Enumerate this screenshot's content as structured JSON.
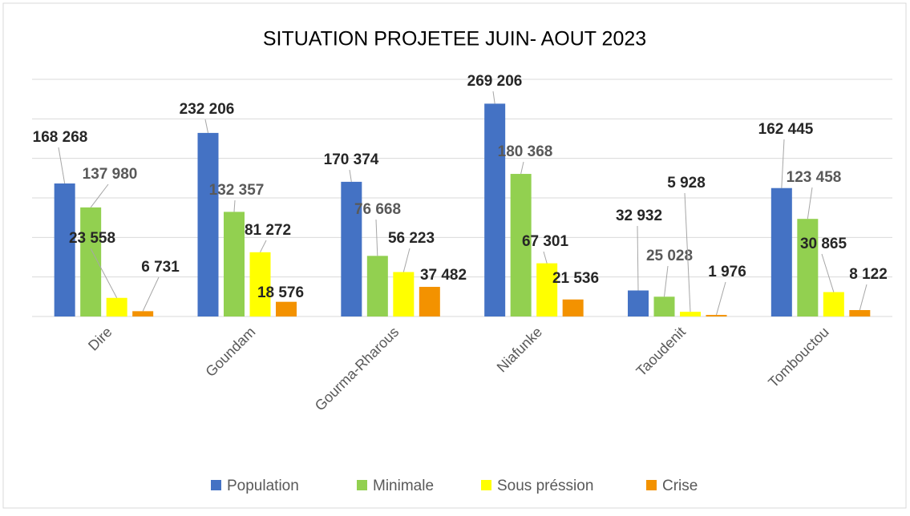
{
  "chart_data": {
    "type": "bar",
    "title": "SITUATION PROJETEE JUIN- AOUT 2023",
    "categories": [
      "Dire",
      "Goundam",
      "Gourma-Rharous",
      "Niafunke",
      "Taoudenit",
      "Tombouctou"
    ],
    "series": [
      {
        "name": "Population",
        "color": "#4472c4",
        "values": [
          168268,
          232206,
          170374,
          269206,
          32932,
          162445
        ],
        "value_labels": [
          "168 268",
          "232 206",
          "170 374",
          "269 206",
          "32 932",
          "162 445"
        ]
      },
      {
        "name": "Minimale",
        "color": "#92d050",
        "values": [
          137980,
          132357,
          76668,
          180368,
          25028,
          123458
        ],
        "value_labels": [
          "137 980",
          "132 357",
          "76 668",
          "180 368",
          "25 028",
          "123 458"
        ]
      },
      {
        "name": "Sous préssion",
        "color": "#ffff00",
        "values": [
          23558,
          81272,
          56223,
          67301,
          5928,
          30865
        ],
        "value_labels": [
          "23 558",
          "81 272",
          "56 223",
          "67 301",
          "5 928",
          "30 865"
        ]
      },
      {
        "name": "Crise",
        "color": "#f39200",
        "values": [
          6731,
          18576,
          37482,
          21536,
          1976,
          8122
        ],
        "value_labels": [
          "6 731",
          "18 576",
          "37 482",
          "21 536",
          "1 976",
          "8 122"
        ]
      }
    ],
    "ylim": [
      0,
      300000
    ],
    "yticks": [
      0,
      50000,
      100000,
      150000,
      200000,
      250000,
      300000
    ],
    "grid": true,
    "legend": "bottom"
  }
}
